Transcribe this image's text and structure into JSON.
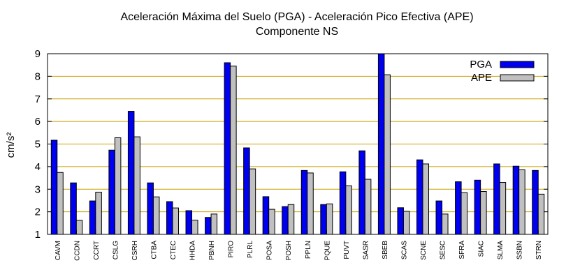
{
  "chart_data": {
    "type": "bar",
    "title": "Aceleración Máxima del Suelo (PGA) -  Aceleración Pico Efectiva (APE)",
    "subtitle": "Componente NS",
    "xlabel": "",
    "ylabel": "cm/s²",
    "ylim": [
      1,
      9
    ],
    "yticks": [
      "1",
      "2",
      "3",
      "4",
      "5",
      "6",
      "7",
      "8",
      "9"
    ],
    "grid": "horizontal",
    "legend_position": "top-right",
    "categories": [
      "CAVM",
      "CCDN",
      "CCRT",
      "CSLG",
      "CSRH",
      "CTBA",
      "CTEC",
      "HHDA",
      "PBNH",
      "PIRO",
      "PLRL",
      "POSA",
      "POSH",
      "PPLN",
      "PQUE",
      "PUVT",
      "SASR",
      "SBEB",
      "SCAS",
      "SCNE",
      "SESC",
      "SFRA",
      "SIAC",
      "SLMA",
      "SSBN",
      "STRN"
    ],
    "series": [
      {
        "name": "PGA",
        "color": "#0000f0",
        "values": [
          5.17,
          3.28,
          2.48,
          4.73,
          6.45,
          3.28,
          2.45,
          2.05,
          1.75,
          8.6,
          4.83,
          2.67,
          2.23,
          3.83,
          2.32,
          3.77,
          4.7,
          9.0,
          2.18,
          4.3,
          2.48,
          3.33,
          3.4,
          4.12,
          4.02,
          3.83
        ]
      },
      {
        "name": "APE",
        "color": "#c0c0c0",
        "values": [
          3.74,
          1.62,
          2.87,
          5.28,
          5.32,
          2.66,
          2.17,
          1.63,
          1.9,
          8.45,
          3.9,
          2.11,
          2.32,
          3.72,
          2.35,
          3.15,
          3.44,
          8.07,
          2.02,
          4.12,
          1.9,
          2.85,
          2.9,
          3.3,
          3.86,
          2.78
        ]
      }
    ]
  }
}
